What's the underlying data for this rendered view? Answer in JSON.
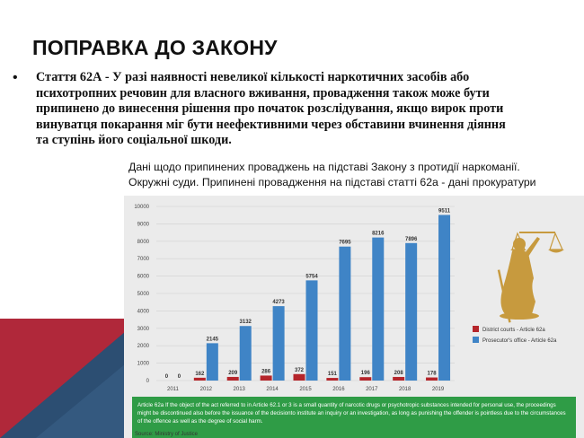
{
  "slide": {
    "title": "ПОПРАВКА ДО ЗАКОНУ",
    "bullet_symbol": "•",
    "bullet_text": "Стаття 62А - У разі наявності невеликої кількості наркотичних засобів або психотропних речовин для власного вживання, провадження також може бути припинено до винесення рішення про початок розслідування, якщо вирок проти винуватця покарання міг бути неефективними через обставини вчинення діяння та ступінь його соціальної шкоди.",
    "caption_line1": "Дані щодо припинених проваджень на підставі Закону з протидії наркоманії.",
    "caption_line2": "Окружні суди. Припинені провадження на підставі статті 62а - дані прокуратури"
  },
  "colors": {
    "district": "#b5252b",
    "prosecutor": "#3f84c6",
    "note_bg": "#2f9c46",
    "deco_red": "#b0283a",
    "deco_blue": "#2c4e72",
    "gold": "#c79a3e"
  },
  "chart_data": {
    "type": "bar",
    "categories": [
      "2011",
      "2012",
      "2013",
      "2014",
      "2015",
      "2016",
      "2017",
      "2018",
      "2019"
    ],
    "series": [
      {
        "name": "District courts - Article 62a",
        "values": [
          0,
          162,
          209,
          286,
          372,
          151,
          196,
          208,
          178
        ]
      },
      {
        "name": "Prosecutor's office - Article 62a",
        "values": [
          0,
          2145,
          3132,
          4273,
          5754,
          7695,
          8216,
          7896,
          9511
        ]
      }
    ],
    "y_ticks": [
      "0",
      "1000",
      "2000",
      "3000",
      "4000",
      "5000",
      "6000",
      "7000",
      "8000",
      "9000",
      "10000"
    ],
    "ylim": [
      0,
      10000
    ],
    "grid": true,
    "legend_position": "right",
    "note": "Article 62a If the object of the act referred to in Article 62.1 or 3 is a small quantity of narcotic drugs or psychotropic substances intended for personal use, the proceedings might be discontinued also before the issuance of the decisionto institute an inquiry or an investigation, as long as punishing the offender is pointless due to the circumstances of the offence as well as the degree of social harm.",
    "source": "Source: Ministry of Justice"
  }
}
